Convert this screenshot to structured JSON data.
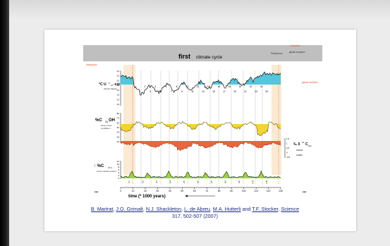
{
  "figure": {
    "title_bold": "first",
    "title_rest": "climate cycle",
    "top_notes": [
      "Interglacial",
      "Pleistocene",
      "Holocene",
      "glacial inception",
      "glacial inception"
    ],
    "panel_labels": {
      "uk": "°C U",
      "uk_sub": "k'",
      "uk_sub2": "37",
      "uk_rest": "-sst",
      "uk_caption": "Iberian Margin",
      "c26": "%C",
      "c26_sub": "26",
      "c26_rest": "OH",
      "c26_caption1": "deep ocean",
      "c26_caption2": "ventilation",
      "c37": "↑ %C",
      "c37_sub": "37:4",
      "c37_caption": "Arctic surface-waters",
      "d13c": "‰ δ",
      "d13c_sup": "13",
      "d13c_rest": "C",
      "d13c_sub": "ben",
      "nadw": "NADW",
      "aabw": "AABW"
    },
    "uk_ticks": [
      "24",
      "22",
      "20",
      "18",
      "16",
      "14",
      "12",
      "10"
    ],
    "c26_ticks": [
      "80",
      "70",
      "60",
      "50",
      "40",
      "30",
      "20"
    ],
    "c37_ticks": [
      "12",
      "10",
      "8",
      "6",
      "4",
      "2",
      "0"
    ],
    "d13c_ticks": [
      "1.5",
      "1",
      "0.5",
      "0",
      "-0.5"
    ],
    "x_ticks": [
      "0",
      "10",
      "20",
      "30",
      "40",
      "50",
      "60",
      "70",
      "80",
      "90",
      "100",
      "110",
      "120",
      "130"
    ],
    "x_label": "time (* 1000 years)",
    "ellipsis": "•••",
    "stadial_numbers": [
      "1",
      "2",
      "3",
      "4",
      "5",
      "6",
      "7",
      "8",
      "9",
      "10",
      "11",
      "12",
      "13",
      "14",
      "15",
      "16",
      "17",
      "18",
      "19",
      "20",
      "21",
      "22",
      "23",
      "24",
      "25"
    ],
    "heinrich_labels": [
      "H1",
      "H2",
      "H3",
      "H4",
      "H5",
      "H6",
      "H7",
      "H8",
      "H9",
      "H10",
      "H11"
    ]
  },
  "citation": {
    "authors": [
      "B. Martrat",
      "J.O. Grimalt",
      "N.J. Shackleton",
      "L. de Abreu",
      "M.A. Hutterli",
      "T.F. Stocker"
    ],
    "journal": "Science",
    "volume_pages_year": "317, 502-507 (2007)"
  },
  "colors": {
    "header_bar": "#bfbfbf",
    "sst_fill": "#55c6dc",
    "ventilation_fill": "#f0d020",
    "benthic_fill": "#e8552a",
    "arctic_fill": "#9fd23c",
    "warm_band": "#f6d9b0",
    "annotation_red": "#e0562a",
    "citation_blue": "#1a2a7a"
  }
}
